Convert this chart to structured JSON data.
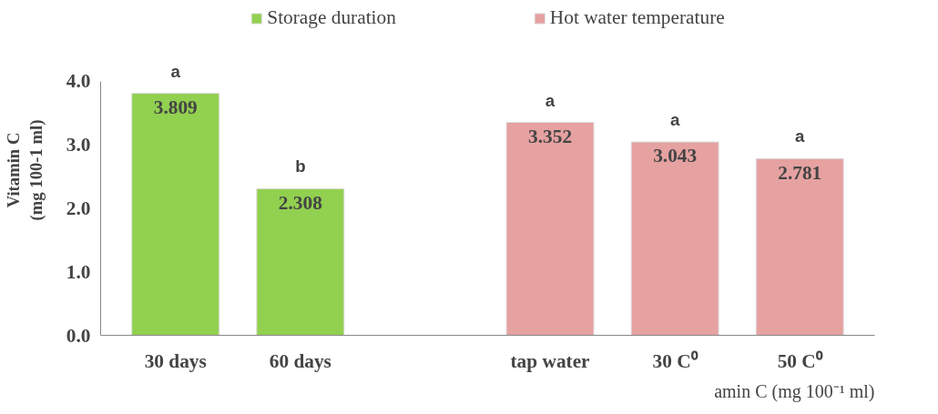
{
  "chart_data": {
    "type": "bar",
    "ylabel": "Vitamin C\n(mg 100-1 ml)",
    "categories": [
      "30 days",
      "60 days",
      null,
      "tap water",
      "30 C⁰",
      "50 C⁰"
    ],
    "series": [
      {
        "name": "Storage duration",
        "color": "#92d050",
        "values": [
          3.809,
          2.308,
          null,
          null,
          null,
          null
        ]
      },
      {
        "name": "Hot water temperature",
        "color": "#e6a1a1",
        "values": [
          null,
          null,
          null,
          3.352,
          3.043,
          2.781
        ]
      }
    ],
    "ylim": [
      0,
      4.0
    ],
    "yticks": [
      {
        "value": 0,
        "label": "0.0"
      },
      {
        "value": 1,
        "label": "1.0"
      },
      {
        "value": 2,
        "label": "2.0"
      },
      {
        "value": 3,
        "label": "3.0"
      },
      {
        "value": 4,
        "label": "4.0"
      }
    ],
    "data_labels": true,
    "grid": false,
    "legend": "top",
    "annotations": [
      "a",
      "b",
      "a",
      "a",
      "a",
      "amin C (mg 100⁻¹ ml)"
    ]
  }
}
